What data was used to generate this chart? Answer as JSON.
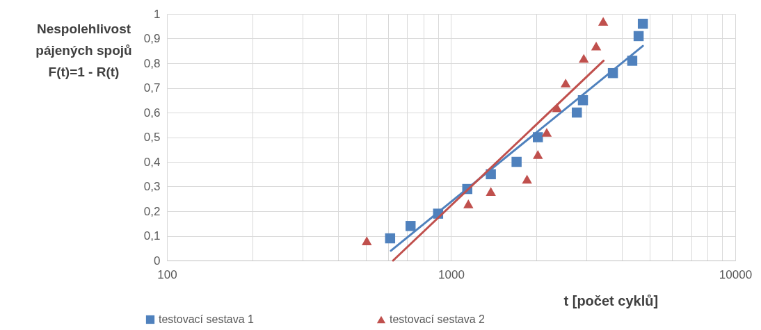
{
  "chart_data": {
    "type": "scatter",
    "xlabel": "t [počet cyklů]",
    "ylabel": "Nespolehlivost\npájených spojů\nF(t)=1 - R(t)",
    "log": "x",
    "grid": true,
    "legend": "bottom left",
    "xlim": [
      100,
      10000
    ],
    "ylim": [
      0,
      1
    ],
    "xticks": [
      100,
      {
        "value": 200,
        "label": null
      },
      {
        "value": 300,
        "label": null
      },
      {
        "value": 400,
        "label": null
      },
      {
        "value": 500,
        "label": null
      },
      {
        "value": 600,
        "label": null
      },
      {
        "value": 700,
        "label": null
      },
      {
        "value": 800,
        "label": null
      },
      {
        "value": 900,
        "label": null
      },
      1000,
      {
        "value": 2000,
        "label": null
      },
      {
        "value": 3000,
        "label": null
      },
      {
        "value": 4000,
        "label": null
      },
      {
        "value": 5000,
        "label": null
      },
      {
        "value": 6000,
        "label": null
      },
      {
        "value": 7000,
        "label": null
      },
      {
        "value": 8000,
        "label": null
      },
      {
        "value": 9000,
        "label": null
      },
      10000
    ],
    "yticks": [
      0,
      {
        "value": 0.1,
        "label": "0,1"
      },
      {
        "value": 0.2,
        "label": "0,2"
      },
      {
        "value": 0.3,
        "label": "0,3"
      },
      {
        "value": 0.4,
        "label": "0,4"
      },
      {
        "value": 0.5,
        "label": "0,5"
      },
      {
        "value": 0.6,
        "label": "0,6"
      },
      {
        "value": 0.7,
        "label": "0,7"
      },
      {
        "value": 0.8,
        "label": "0,8"
      },
      {
        "value": 0.9,
        "label": "0,9"
      },
      1
    ],
    "series": [
      {
        "name": "testovací sestava 1",
        "type": "scatter",
        "marker": "square",
        "color": "#4f81bd",
        "x": [
          610,
          720,
          900,
          1140,
          1380,
          1700,
          2020,
          2770,
          2910,
          3710,
          4340,
          4570,
          4730
        ],
        "values": [
          0.09,
          0.14,
          0.19,
          0.29,
          0.35,
          0.4,
          0.5,
          0.6,
          0.65,
          0.76,
          0.81,
          0.91,
          0.96
        ]
      },
      {
        "name": "testovací sestava 2",
        "type": "scatter",
        "marker": "triangle",
        "color": "#c0504d",
        "x": [
          505,
          1150,
          1380,
          1850,
          2020,
          2170,
          2360,
          2530,
          2930,
          3240,
          3430
        ],
        "values": [
          0.08,
          0.23,
          0.28,
          0.33,
          0.43,
          0.52,
          0.62,
          0.72,
          0.82,
          0.87,
          0.97
        ]
      },
      {
        "type": "line",
        "marker": "none",
        "color": "#4f81bd",
        "x": [
          614,
          4730
        ],
        "values": [
          0.04,
          0.87
        ]
      },
      {
        "type": "line",
        "marker": "none",
        "color": "#c0504d",
        "x": [
          625,
          3440
        ],
        "values": [
          0,
          0.81
        ]
      }
    ]
  }
}
